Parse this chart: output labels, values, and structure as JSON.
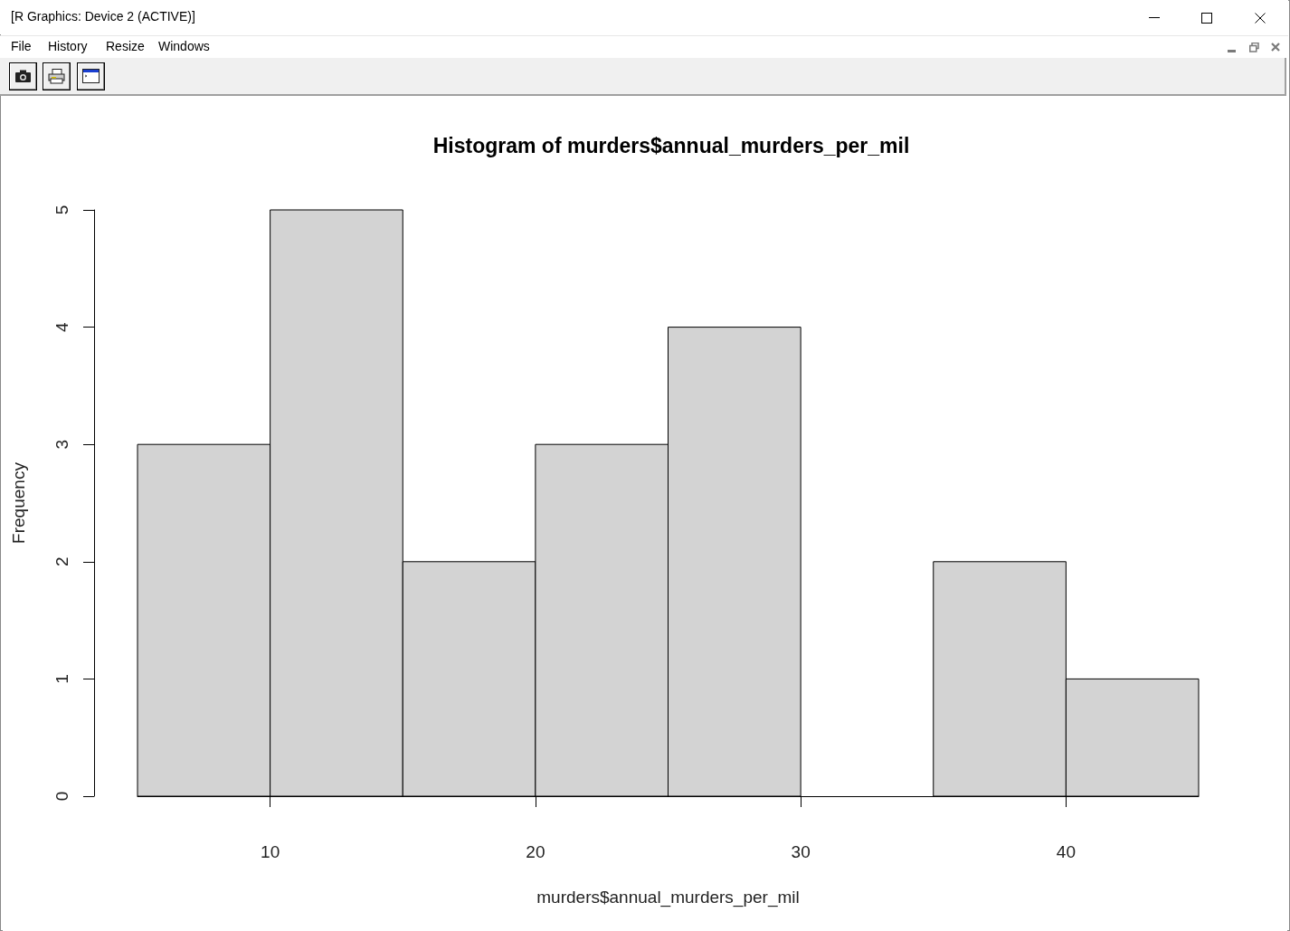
{
  "chart_data": {
    "type": "histogram",
    "title": "Histogram of murders$annual_murders_per_mil",
    "xlabel": "murders$annual_murders_per_mil",
    "ylabel": "Frequency",
    "annotations": [
      "[R Graphics: Device 2 (ACTIVE)]",
      "File",
      "History",
      "Resize",
      "Windows"
    ],
    "bins": [
      5,
      10,
      15,
      20,
      25,
      30,
      35,
      40,
      45
    ],
    "values": [
      3,
      5,
      2,
      3,
      4,
      0,
      2,
      1
    ],
    "color": "#d3d3d3",
    "xlim": [
      5,
      45
    ],
    "xticks": [
      10,
      20,
      30,
      40
    ],
    "ylim": [
      0,
      5
    ],
    "yticks": [
      0,
      1,
      2,
      3,
      4,
      5
    ]
  }
}
